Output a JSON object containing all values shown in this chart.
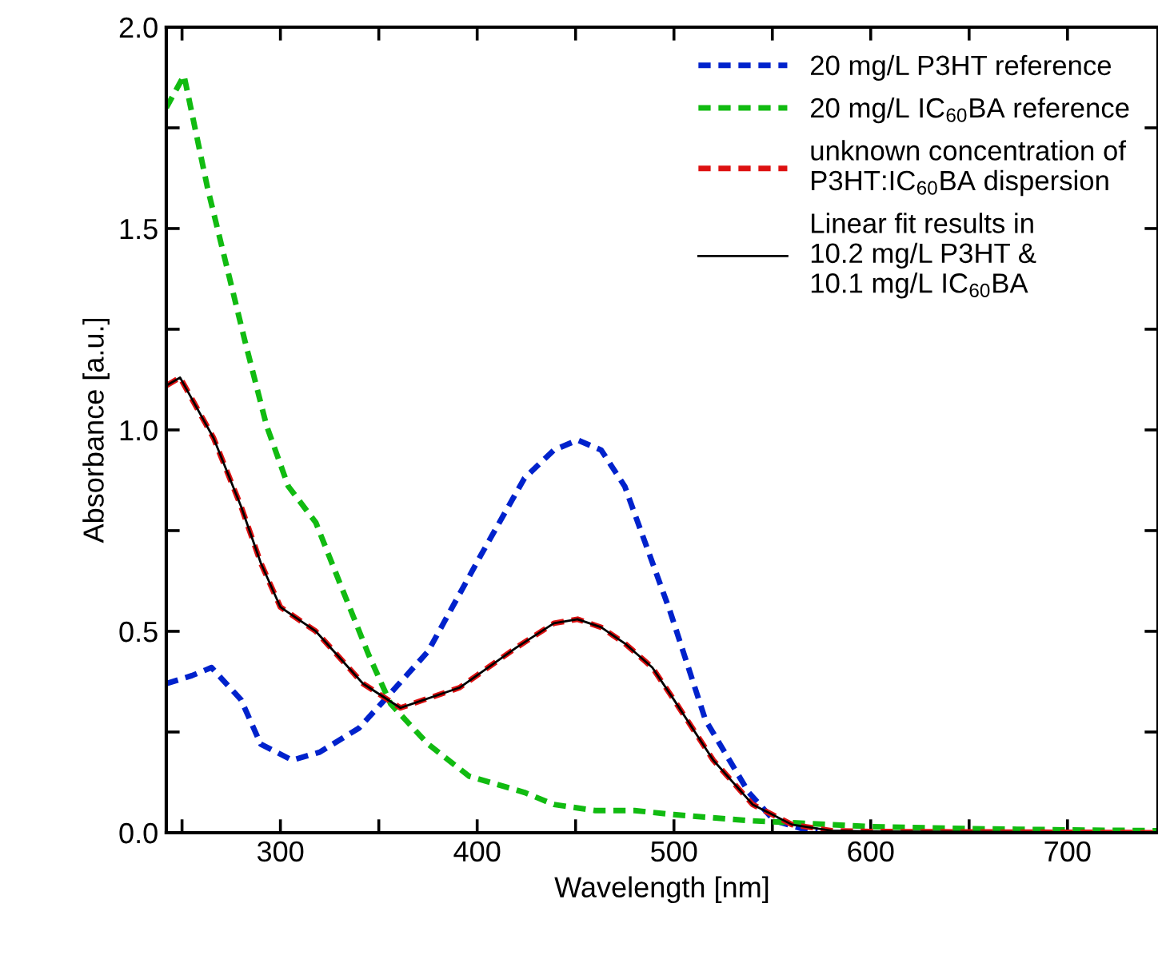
{
  "chart_data": {
    "type": "line",
    "xlabel": "Wavelength [nm]",
    "ylabel": "Absorbance [a.u.]",
    "xlim": [
      242,
      746
    ],
    "ylim": [
      0,
      2.0
    ],
    "xticks": [
      {
        "value": 250,
        "label": null
      },
      300,
      {
        "value": 350,
        "label": null
      },
      400,
      {
        "value": 450,
        "label": null
      },
      500,
      {
        "value": 550,
        "label": null
      },
      600,
      {
        "value": 650,
        "label": null
      },
      700
    ],
    "yticks": [
      {
        "value": 0,
        "label": "0.0"
      },
      {
        "value": 0.25,
        "label": null
      },
      {
        "value": 0.5,
        "label": "0.5"
      },
      {
        "value": 0.75,
        "label": null
      },
      {
        "value": 1.0,
        "label": "1.0"
      },
      {
        "value": 1.25,
        "label": null
      },
      {
        "value": 1.5,
        "label": "1.5"
      },
      {
        "value": 1.75,
        "label": null
      },
      {
        "value": 2.0,
        "label": "2.0"
      }
    ],
    "legend": "top right",
    "grid": false,
    "marker": "none",
    "series": [
      {
        "name": "20 mg/L P3HT reference",
        "color": "#0022cc",
        "line_style": "dashed",
        "x": [
          242,
          255,
          265,
          280,
          290,
          306,
          320,
          340,
          353,
          375,
          402,
          424,
          439,
          451,
          463,
          475,
          498,
          516,
          538,
          551,
          565,
          573
        ],
        "values": [
          0.37,
          0.39,
          0.41,
          0.33,
          0.22,
          0.18,
          0.2,
          0.26,
          0.33,
          0.45,
          0.69,
          0.88,
          0.95,
          0.975,
          0.95,
          0.86,
          0.55,
          0.28,
          0.1,
          0.03,
          0.01,
          0.006
        ]
      },
      {
        "name": "20 mg/L IC$_{60}$BA reference",
        "color": "#11bb11",
        "line_style": "dashed",
        "x": [
          242,
          251,
          263,
          274,
          282,
          293,
          304,
          318,
          331,
          345,
          356,
          375,
          396,
          424,
          439,
          460,
          480,
          500,
          538,
          600,
          650,
          700,
          746
        ],
        "values": [
          1.8,
          1.88,
          1.6,
          1.38,
          1.22,
          1.01,
          0.86,
          0.77,
          0.61,
          0.44,
          0.32,
          0.22,
          0.14,
          0.1,
          0.07,
          0.055,
          0.055,
          0.045,
          0.03,
          0.015,
          0.01,
          0.007,
          0.005
        ]
      },
      {
        "name": "unknown concentration of\nP3HT:IC$_{60}$BA dispersion",
        "color": "#dd1111",
        "line_style": "dashed",
        "x": [
          242,
          249,
          266,
          280,
          290,
          300,
          318,
          342,
          361,
          391,
          420,
          439,
          451,
          463,
          475,
          489,
          500,
          520,
          540,
          560,
          580,
          600,
          650,
          700,
          746
        ],
        "values": [
          1.11,
          1.13,
          0.98,
          0.81,
          0.67,
          0.56,
          0.5,
          0.37,
          0.31,
          0.36,
          0.46,
          0.52,
          0.53,
          0.51,
          0.47,
          0.41,
          0.33,
          0.18,
          0.07,
          0.02,
          0.005,
          0.003,
          0.002,
          0.001,
          0.0
        ]
      },
      {
        "name": "Linear fit results in\n10.2 mg/L P3HT &\n10.1 mg/L IC$_{60}$BA",
        "color": "#000000",
        "line_style": "solid",
        "x": [
          242,
          249,
          266,
          280,
          290,
          300,
          318,
          342,
          361,
          391,
          420,
          439,
          451,
          463,
          475,
          489,
          500,
          520,
          540,
          560,
          580,
          600,
          650,
          700,
          746
        ],
        "values": [
          1.11,
          1.13,
          0.98,
          0.81,
          0.67,
          0.56,
          0.5,
          0.37,
          0.31,
          0.36,
          0.46,
          0.52,
          0.53,
          0.51,
          0.47,
          0.41,
          0.33,
          0.18,
          0.07,
          0.02,
          0.005,
          0.003,
          0.002,
          0.001,
          0.0
        ]
      }
    ]
  }
}
